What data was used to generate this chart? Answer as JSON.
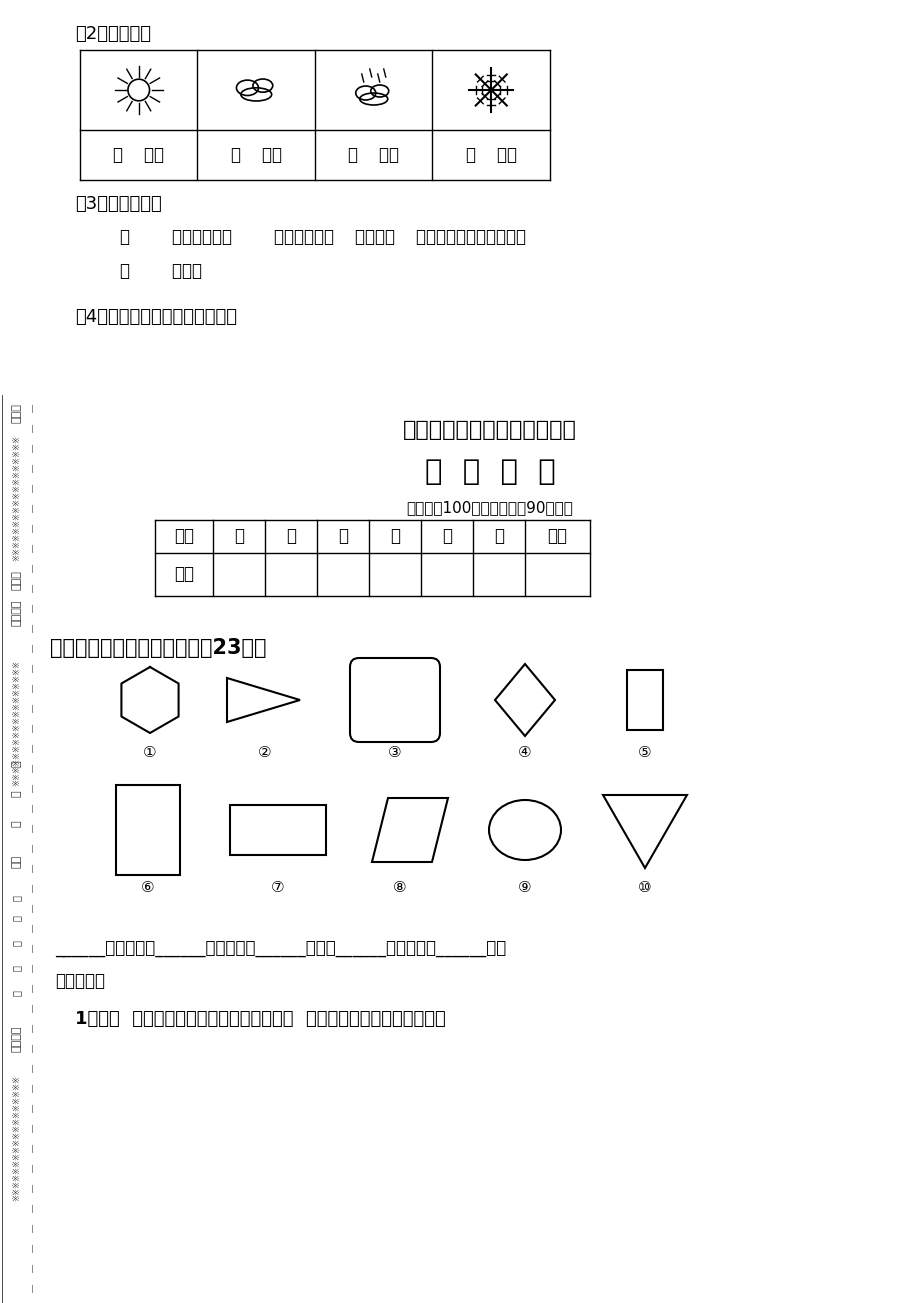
{
  "bg_color": "#ffffff",
  "title1": "小学一年级第一单元综合检测",
  "title2": "数  学  试  题",
  "subtitle": "（满分为100分，测试时间90分钟）",
  "table_headers": [
    "内容",
    "一",
    "二",
    "三",
    "四",
    "五",
    "六",
    "总分"
  ],
  "table_row2": [
    "得分",
    "",
    "",
    "",
    "",
    "",
    "",
    ""
  ],
  "section1_title": "一、仔细思考，细心填空。（23分）",
  "fill_label1": "（2）填一填。",
  "fill_label2": "（3）回答问题。",
  "fill_label3": "（4）你还能提出哪些数学问题？",
  "answer_line1": "（        ）天最多，（        ）天最少；（    ）天和（    ）天一多。晴天比阴天多",
  "answer_line2": "（        ）天。",
  "shape_line_a": "______是长方形，______是正方形，______是圆，______是三角形，______是平",
  "shape_line_b": "行四边形。",
  "question1": "1、用（  ）根小棒可以摆一个长方形；用（  ）根小棒可以摆一个三角形。"
}
